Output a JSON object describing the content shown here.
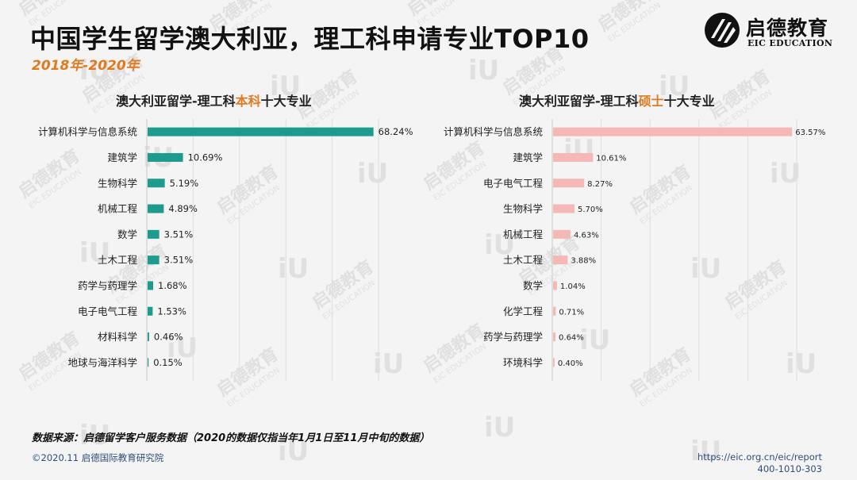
{
  "header": {
    "title": "中国学生留学澳大利亚，理工科申请专业TOP10",
    "subtitle": "2018年-2020年"
  },
  "logo": {
    "name_cn": "启德教育",
    "name_en": "EIC EDUCATION"
  },
  "charts": {
    "left_title_pre": "澳大利亚留学-理工科",
    "left_title_hl": "本科",
    "left_title_post": "十大专业",
    "right_title_pre": "澳大利亚留学-理工科",
    "right_title_hl": "硕士",
    "right_title_post": "十大专业"
  },
  "chart_data": [
    {
      "type": "bar",
      "orientation": "horizontal",
      "title": "澳大利亚留学-理工科本科十大专业",
      "categories": [
        "计算机科学与信息系统",
        "建筑学",
        "生物科学",
        "机械工程",
        "数学",
        "土木工程",
        "药学与药理学",
        "电子电气工程",
        "材料科学",
        "地球与海洋科学"
      ],
      "values": [
        68.24,
        10.69,
        5.19,
        4.89,
        3.51,
        3.51,
        1.68,
        1.53,
        0.46,
        0.15
      ],
      "labels": [
        "68.24%",
        "10.69%",
        "5.19%",
        "4.89%",
        "3.51%",
        "3.51%",
        "1.68%",
        "1.53%",
        "0.46%",
        "0.15%"
      ],
      "color": "#1e9a8f",
      "xlim": [
        0,
        70
      ],
      "grid": true
    },
    {
      "type": "bar",
      "orientation": "horizontal",
      "title": "澳大利亚留学-理工科硕士十大专业",
      "categories": [
        "计算机科学与信息系统",
        "建筑学",
        "电子电气工程",
        "生物科学",
        "机械工程",
        "土木工程",
        "数学",
        "化学工程",
        "药学与药理学",
        "环境科学"
      ],
      "values": [
        63.57,
        10.61,
        8.27,
        5.7,
        4.63,
        3.88,
        1.04,
        0.71,
        0.64,
        0.4
      ],
      "labels": [
        "63.57%",
        "10.61%",
        "8.27%",
        "5.70%",
        "4.63%",
        "3.88%",
        "1.04%",
        "0.71%",
        "0.64%",
        "0.40%"
      ],
      "color": "#f4b8b6",
      "xlim": [
        0,
        65
      ],
      "grid": true
    }
  ],
  "footer": {
    "source": "数据来源：启德留学客户服务数据（2020的数据仅指当年1月1日至11月中旬的数据）",
    "copyright": "©2020.11 启德国际教育研究院",
    "url": "https://eic.org.cn/eic/report",
    "phone": "400-1010-303"
  },
  "watermark": {
    "text_cn": "启德教育",
    "text_en": "EIC EDUCATION",
    "mark": "iU"
  }
}
